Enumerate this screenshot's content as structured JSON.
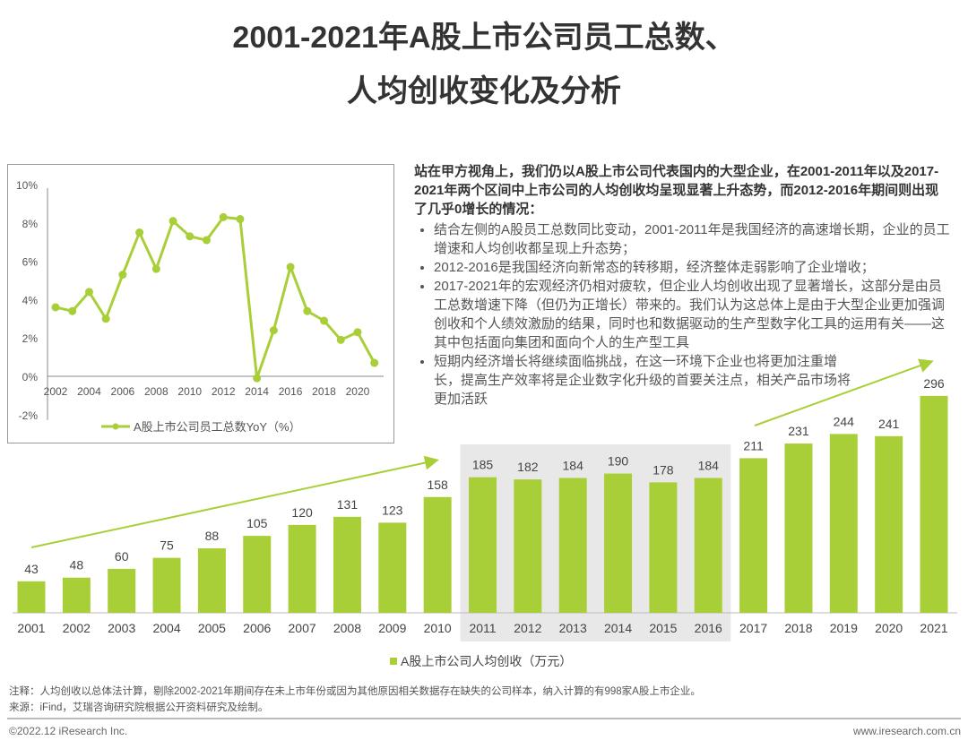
{
  "title_line1": "2001-2021年A股上市公司员工总数、",
  "title_line2": "人均创收变化及分析",
  "description": {
    "lead": "站在甲方视角上，我们仍以A股上市公司代表国内的大型企业，在2001-2011年以及2017-2021年两个区间中上市公司的人均创收均呈现显著上升态势，而2012-2016年期间则出现了几乎0增长的情况：",
    "bullets": [
      "结合左侧的A股员工总数同比变动，2001-2011年是我国经济的高速增长期，企业的员工增速和人均创收都呈现上升态势；",
      "2012-2016是我国经济向新常态的转移期，经济整体走弱影响了企业增收；",
      "2017-2021年的宏观经济仍相对疲软，但企业人均创收出现了显著增长，这部分是由员工总数增速下降（但仍为正增长）带来的。我们认为这总体上是由于大型企业更加强调创收和个人绩效激励的结果，同时也和数据驱动的生产型数字化工具的运用有关——这其中包括面向集团和面向个人的生产型工具",
      "短期内经济增长将继续面临挑战，在这一环境下企业也将更加注重增长，提高生产效率将是企业数字化升级的首要关注点，相关产品市场将更加活跃"
    ]
  },
  "chart_data": [
    {
      "type": "line",
      "title": "",
      "x": [
        2002,
        2003,
        2004,
        2005,
        2006,
        2007,
        2008,
        2009,
        2010,
        2011,
        2012,
        2013,
        2014,
        2015,
        2016,
        2017,
        2018,
        2019,
        2020,
        2021
      ],
      "series": [
        {
          "name": "A股上市公司员工总数YoY（%）",
          "values": [
            3.6,
            3.4,
            4.4,
            3.0,
            5.3,
            7.5,
            5.6,
            8.1,
            7.3,
            7.1,
            8.3,
            8.2,
            -0.1,
            2.4,
            5.7,
            3.4,
            2.9,
            1.9,
            2.3,
            0.7
          ]
        }
      ],
      "xticks": [
        "2002",
        "2004",
        "2006",
        "2008",
        "2010",
        "2012",
        "2014",
        "2016",
        "2018",
        "2020"
      ],
      "yticks": [
        "-2%",
        "0%",
        "2%",
        "4%",
        "6%",
        "8%",
        "10%"
      ],
      "ylim": [
        -2,
        10
      ],
      "legend": "bottom",
      "color": "#a9cf38"
    },
    {
      "type": "bar",
      "categories": [
        "2001",
        "2002",
        "2003",
        "2004",
        "2005",
        "2006",
        "2007",
        "2008",
        "2009",
        "2010",
        "2011",
        "2012",
        "2013",
        "2014",
        "2015",
        "2016",
        "2017",
        "2018",
        "2019",
        "2020",
        "2021"
      ],
      "series": [
        {
          "name": "A股上市公司人均创收（万元）",
          "values": [
            43,
            48,
            60,
            75,
            88,
            105,
            120,
            131,
            123,
            158,
            185,
            182,
            184,
            190,
            178,
            184,
            211,
            231,
            244,
            241,
            296
          ]
        }
      ],
      "highlight_range": [
        "2011",
        "2016"
      ],
      "legend": "bottom",
      "color": "#a9cf38",
      "highlight_color": "#e8e8e8"
    }
  ],
  "notes": {
    "note": "注释：人均创收以总体法计算，剔除2002-2021年期间存在未上市年份或因为其他原因相关数据存在缺失的公司样本，纳入计算的有998家A股上市企业。",
    "source": "来源：iFind，艾瑞咨询研究院根据公开资料研究及绘制。"
  },
  "footer": {
    "copyright": "©2022.12 iResearch Inc.",
    "website": "www.iresearch.com.cn"
  }
}
